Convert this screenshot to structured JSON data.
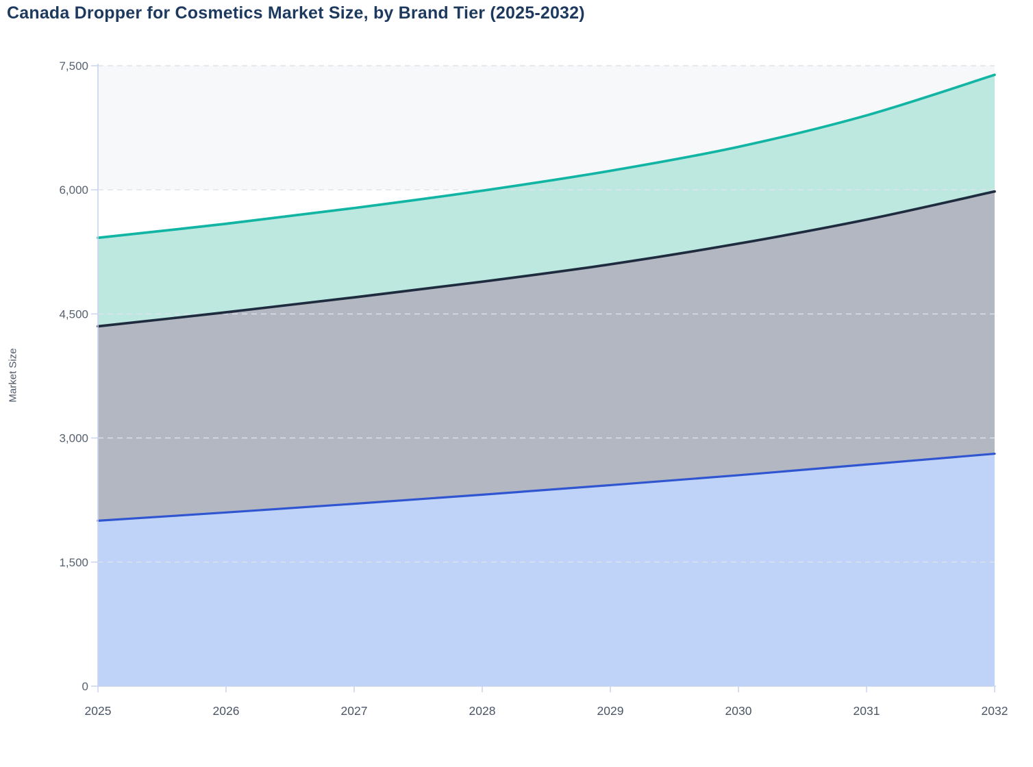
{
  "title": "Canada Dropper for Cosmetics Market Size, by Brand Tier (2025-2032)",
  "chart_data": {
    "type": "area",
    "stacked": true,
    "title": "Canada Dropper for Cosmetics Market Size, by Brand Tier (2025-2032)",
    "xlabel": "",
    "ylabel": "Market Size",
    "x": [
      2025,
      2026,
      2027,
      2028,
      2029,
      2030,
      2031,
      2032
    ],
    "x_tick_labels": [
      "2025",
      "2026",
      "2027",
      "2028",
      "2029",
      "2030",
      "2031",
      "2032"
    ],
    "y_ticks": [
      "0",
      "1,500",
      "3,000",
      "4,500",
      "6,000",
      "7,500"
    ],
    "y_tick_values": [
      0,
      1500,
      3000,
      4500,
      6000,
      7500
    ],
    "ylim": [
      0,
      7500
    ],
    "grid": "horizontal-dashed",
    "legend": "none",
    "series": [
      {
        "name": "blue-tier-bottom",
        "line_color": "#2f55d0",
        "fill_color": "#bfd2f8",
        "values": [
          2000,
          2100,
          2205,
          2315,
          2430,
          2550,
          2680,
          2810
        ]
      },
      {
        "name": "gray-tier-middle",
        "line_color": "#1f2c3f",
        "fill_color": "#b3b7c1",
        "values": [
          2350,
          2420,
          2495,
          2575,
          2670,
          2800,
          2960,
          3170
        ]
      },
      {
        "name": "teal-tier-top",
        "line_color": "#12b5a3",
        "fill_color": "#bde8e0",
        "values": [
          1070,
          1070,
          1080,
          1100,
          1130,
          1170,
          1260,
          1410
        ]
      }
    ],
    "stack_boundaries": {
      "blue_cumulative": [
        2000,
        2100,
        2205,
        2315,
        2430,
        2550,
        2680,
        2810
      ],
      "gray_cumulative": [
        4350,
        4520,
        4700,
        4890,
        5100,
        5350,
        5640,
        5980
      ],
      "teal_cumulative_total": [
        5420,
        5590,
        5780,
        5990,
        6230,
        6520,
        6900,
        7390
      ]
    },
    "background_band": {
      "from": 6000,
      "to": 7500,
      "color": "#f7f8fa"
    }
  },
  "colors": {
    "title": "#1d3a5e",
    "axis_title": "#4f5a68",
    "y_tick_label": "#58616f",
    "x_tick_label": "#4a5565",
    "gridline": "#dee3ec",
    "axis_line": "#c9d3ee",
    "background": "#ffffff"
  }
}
